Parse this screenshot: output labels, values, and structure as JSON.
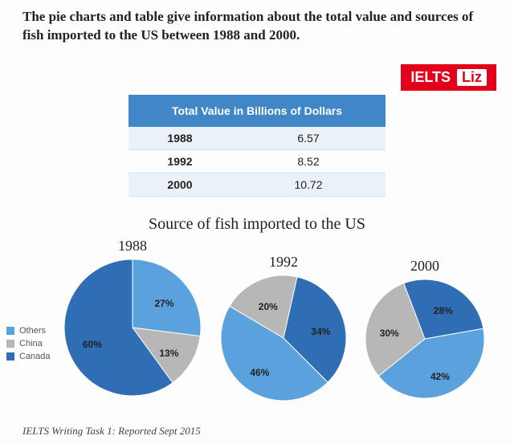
{
  "intro_text": "The pie charts and table give information about the total value and sources of fish imported to the US between 1988 and 2000.",
  "badge": {
    "brand": "IELTS",
    "name": "Liz",
    "bg": "#e2001a",
    "fg": "#ffffff"
  },
  "table": {
    "header": "Total Value in Billions of Dollars",
    "header_bg": "#3f87c6",
    "header_fg": "#ffffff",
    "alt_bg": "#eaf1f7",
    "border": "#d5e2ec",
    "rows": [
      {
        "year": "1988",
        "value": "6.57"
      },
      {
        "year": "1992",
        "value": "8.52"
      },
      {
        "year": "2000",
        "value": "10.72"
      }
    ],
    "fontsize": 14
  },
  "charts": {
    "title": "Source of fish imported to the US",
    "title_fontsize": 20,
    "legend": {
      "items": [
        {
          "label": "Others",
          "color": "#5aa2dd"
        },
        {
          "label": "China",
          "color": "#b7b7b7"
        },
        {
          "label": "Canada",
          "color": "#2f6eb5"
        }
      ],
      "fontsize": 11
    },
    "label_fontsize": 12,
    "pies": [
      {
        "year": "1988",
        "radius": 85,
        "start_angle_deg": 0,
        "slices": [
          {
            "label": "27%",
            "value": 27,
            "color": "#5aa2dd",
            "key": "Others"
          },
          {
            "label": "13%",
            "value": 13,
            "color": "#b7b7b7",
            "key": "China"
          },
          {
            "label": "60%",
            "value": 60,
            "color": "#2f6eb5",
            "key": "Canada"
          }
        ]
      },
      {
        "year": "1992",
        "radius": 78,
        "start_angle_deg": 135,
        "slices": [
          {
            "label": "46%",
            "value": 46,
            "color": "#5aa2dd",
            "key": "Others"
          },
          {
            "label": "20%",
            "value": 20,
            "color": "#b7b7b7",
            "key": "China"
          },
          {
            "label": "34%",
            "value": 34,
            "color": "#2f6eb5",
            "key": "Canada"
          }
        ]
      },
      {
        "year": "2000",
        "radius": 74,
        "start_angle_deg": 80,
        "slices": [
          {
            "label": "42%",
            "value": 42,
            "color": "#5aa2dd",
            "key": "Others"
          },
          {
            "label": "30%",
            "value": 30,
            "color": "#b7b7b7",
            "key": "China"
          },
          {
            "label": "28%",
            "value": 28,
            "color": "#2f6eb5",
            "key": "Canada"
          }
        ]
      }
    ]
  },
  "footer": "IELTS Writing Task 1: Reported Sept 2015",
  "background_color": "#fdfdfd"
}
